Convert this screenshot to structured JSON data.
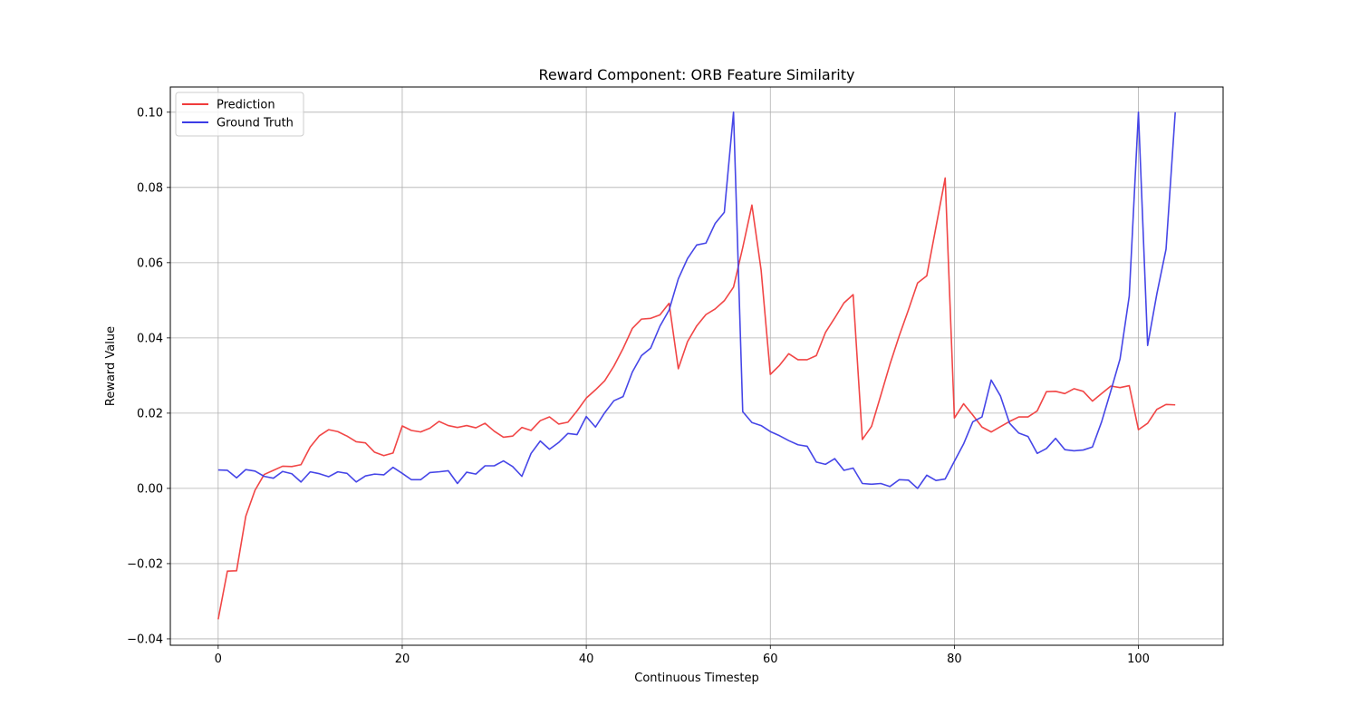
{
  "chart_data": {
    "type": "line",
    "title": "Reward Component: ORB Feature Similarity",
    "xlabel": "Continuous Timestep",
    "ylabel": "Reward Value",
    "xlim": [
      -5.2,
      109.2
    ],
    "ylim": [
      -0.0417,
      0.1067
    ],
    "xticks": [
      0,
      20,
      40,
      60,
      80,
      100
    ],
    "yticks": [
      -0.04,
      -0.02,
      0.0,
      0.02,
      0.04,
      0.06,
      0.08,
      0.1
    ],
    "xtick_labels": [
      "0",
      "20",
      "40",
      "60",
      "80",
      "100"
    ],
    "ytick_labels": [
      "−0.04",
      "−0.02",
      "0.00",
      "0.02",
      "0.04",
      "0.06",
      "0.08",
      "0.10"
    ],
    "grid": true,
    "legend_position": "upper-left",
    "series": [
      {
        "name": "Prediction",
        "color": "#f03c3c",
        "values": [
          -0.0348,
          -0.022,
          -0.0219,
          -0.0074,
          -0.0005,
          0.0037,
          0.0048,
          0.0059,
          0.0058,
          0.0063,
          0.011,
          0.014,
          0.0156,
          0.0151,
          0.0139,
          0.0124,
          0.0121,
          0.0096,
          0.0087,
          0.0094,
          0.0166,
          0.0154,
          0.015,
          0.016,
          0.0178,
          0.0167,
          0.0162,
          0.0167,
          0.0161,
          0.0173,
          0.0152,
          0.0136,
          0.0139,
          0.0162,
          0.0154,
          0.018,
          0.019,
          0.0171,
          0.0176,
          0.0206,
          0.024,
          0.0262,
          0.0286,
          0.0325,
          0.0372,
          0.0425,
          0.045,
          0.0452,
          0.0461,
          0.0492,
          0.0318,
          0.039,
          0.0432,
          0.0462,
          0.0477,
          0.0499,
          0.0535,
          0.064,
          0.0753,
          0.058,
          0.0303,
          0.0327,
          0.0358,
          0.0342,
          0.0342,
          0.0353,
          0.0415,
          0.0453,
          0.0493,
          0.0515,
          0.013,
          0.0165,
          0.0247,
          0.033,
          0.0405,
          0.0474,
          0.0546,
          0.0565,
          0.0695,
          0.0825,
          0.0187,
          0.0225,
          0.0195,
          0.0163,
          0.015,
          0.0164,
          0.0178,
          0.019,
          0.019,
          0.0206,
          0.0257,
          0.0258,
          0.0252,
          0.0265,
          0.0258,
          0.0232,
          0.0252,
          0.0272,
          0.0268,
          0.0273,
          0.0156,
          0.0173,
          0.021,
          0.0223,
          0.0222
        ]
      },
      {
        "name": "Ground Truth",
        "color": "#3c3ce6",
        "values": [
          0.0049,
          0.0048,
          0.0028,
          0.005,
          0.0046,
          0.0032,
          0.0027,
          0.0045,
          0.0039,
          0.0017,
          0.0044,
          0.0039,
          0.0031,
          0.0044,
          0.004,
          0.0017,
          0.0033,
          0.0038,
          0.0036,
          0.0056,
          0.004,
          0.0023,
          0.0023,
          0.0042,
          0.0044,
          0.0047,
          0.0013,
          0.0043,
          0.0038,
          0.006,
          0.006,
          0.0073,
          0.0058,
          0.0032,
          0.0093,
          0.0126,
          0.0104,
          0.0122,
          0.0146,
          0.0143,
          0.0191,
          0.0163,
          0.0201,
          0.0233,
          0.0244,
          0.0309,
          0.0353,
          0.0373,
          0.0431,
          0.0474,
          0.0557,
          0.0611,
          0.0647,
          0.0652,
          0.0704,
          0.0734,
          0.1,
          0.0204,
          0.0175,
          0.0167,
          0.0151,
          0.014,
          0.0127,
          0.0116,
          0.0112,
          0.007,
          0.0064,
          0.0079,
          0.0048,
          0.0054,
          0.0013,
          0.0011,
          0.0013,
          0.0005,
          0.0023,
          0.0022,
          0.0,
          0.0035,
          0.0021,
          0.0025,
          0.0072,
          0.0118,
          0.0177,
          0.019,
          0.0288,
          0.0246,
          0.0173,
          0.0147,
          0.0138,
          0.0093,
          0.0106,
          0.0133,
          0.0103,
          0.01,
          0.0102,
          0.011,
          0.0177,
          0.0259,
          0.0344,
          0.0511,
          0.1,
          0.038,
          0.0517,
          0.0636,
          0.1
        ]
      }
    ]
  }
}
